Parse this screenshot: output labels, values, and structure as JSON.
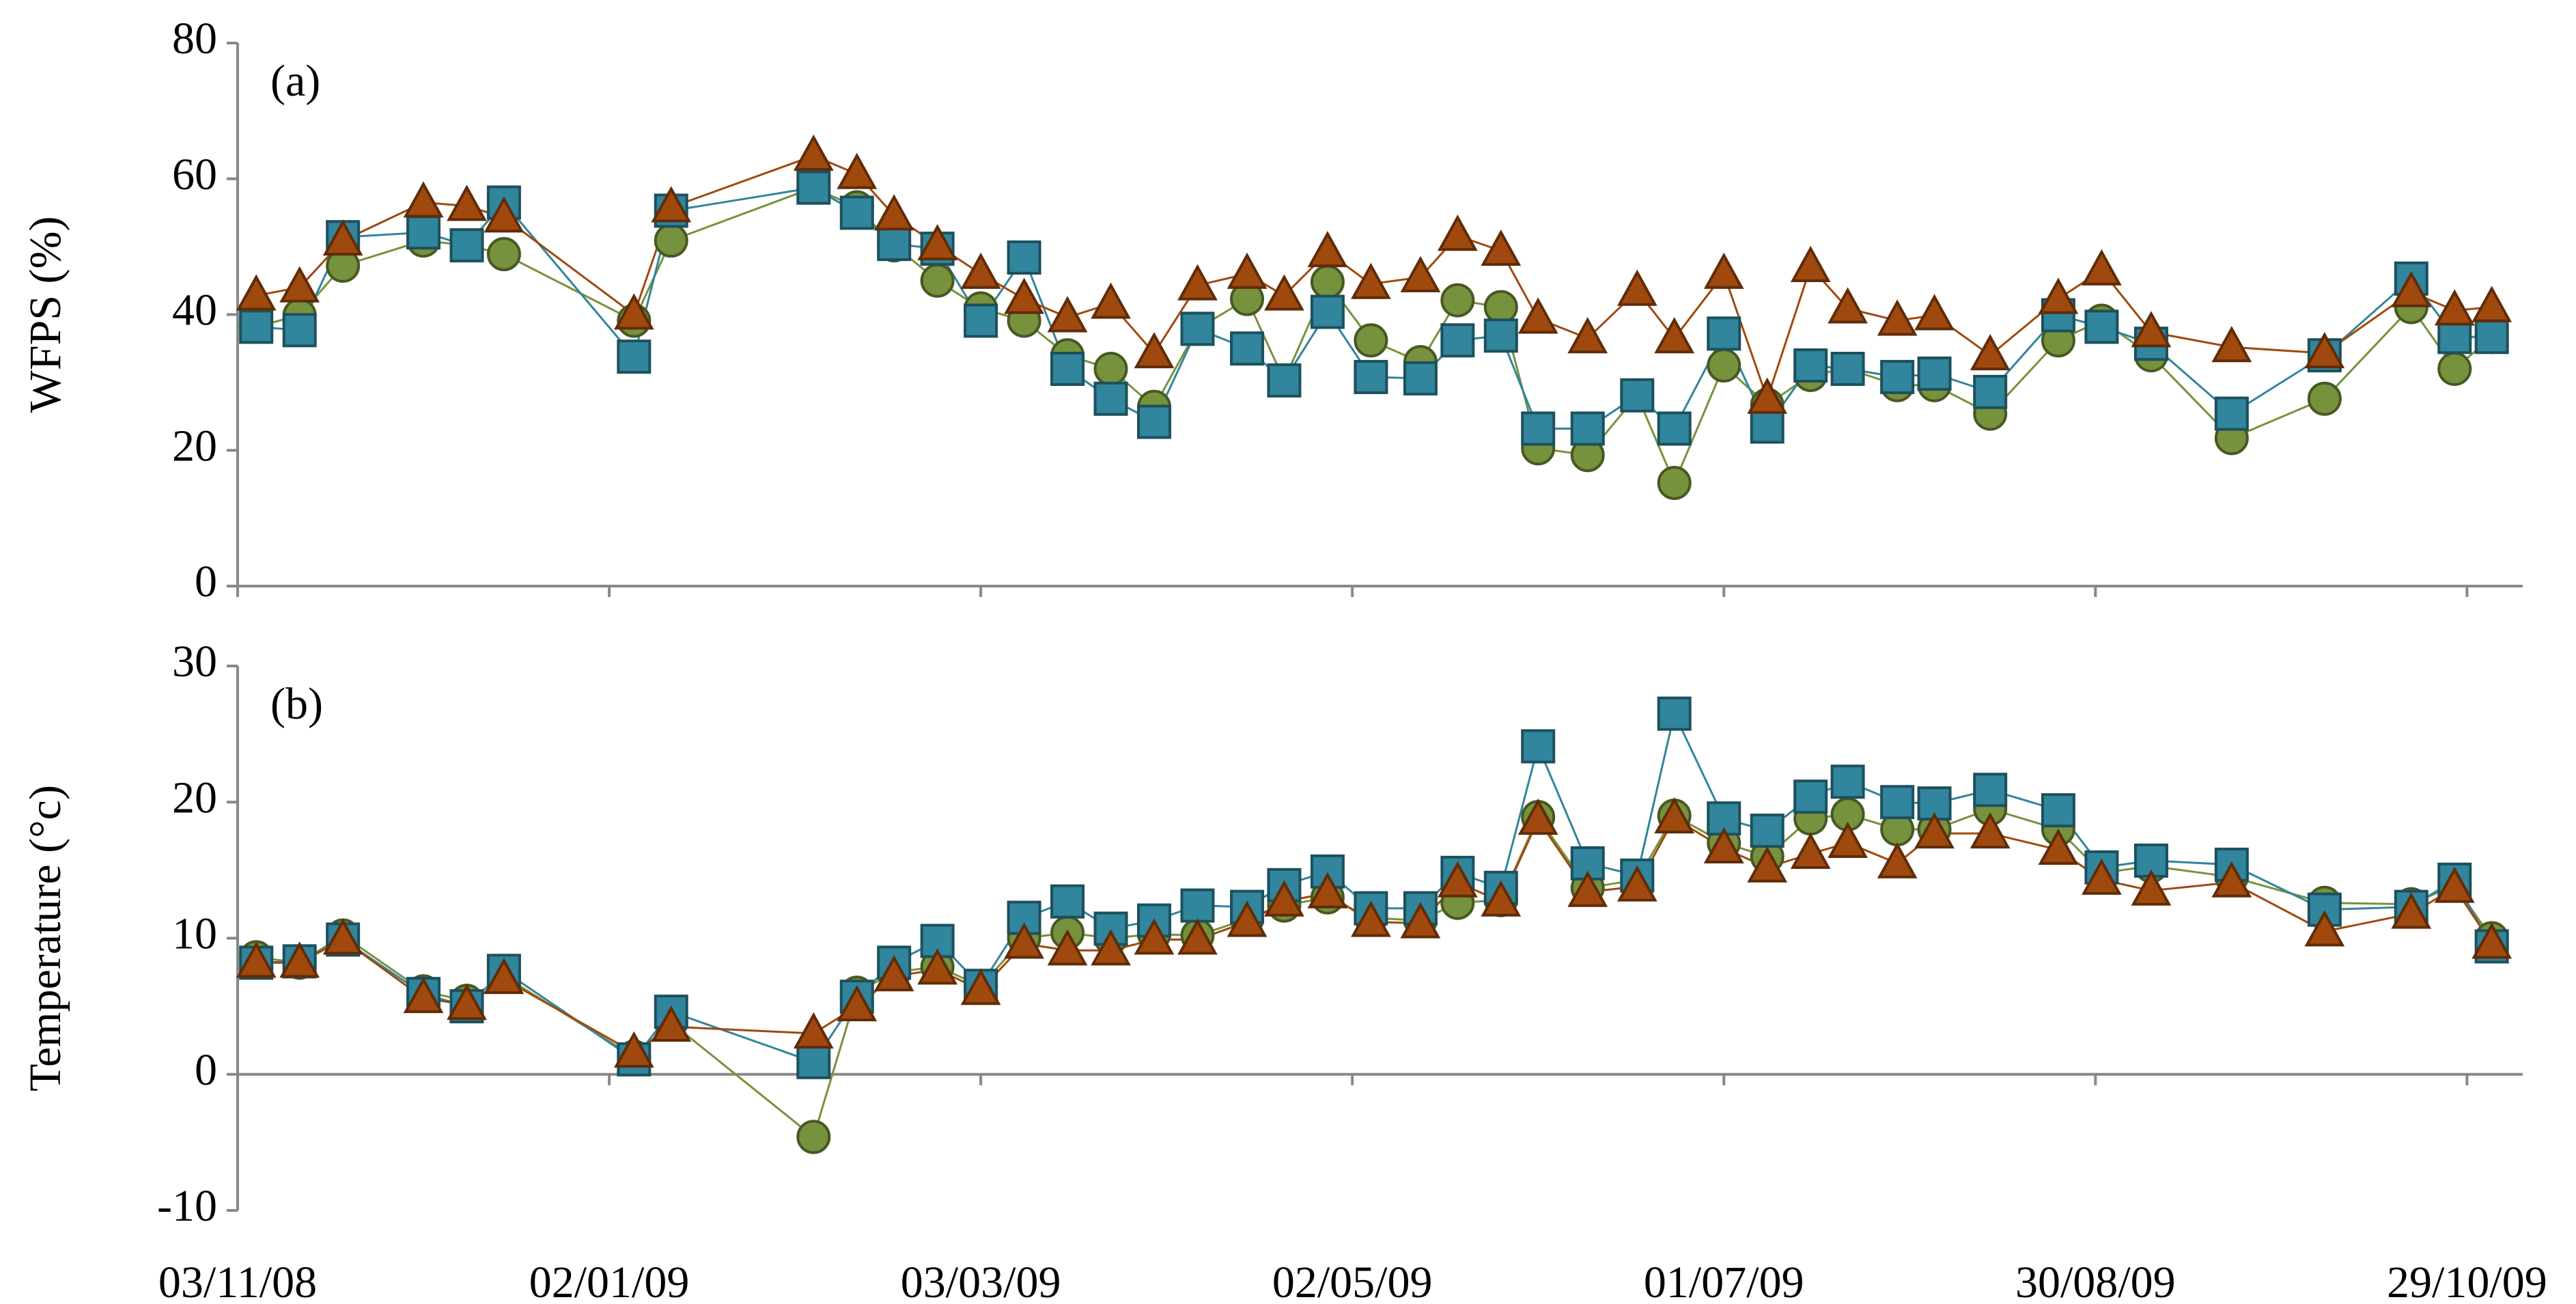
{
  "chart_data": [
    {
      "type": "line",
      "annotation": "(a)",
      "ylabel": "WFPS (%)",
      "x": [
        "06/11/08",
        "13/11/08",
        "20/11/08",
        "03/12/08",
        "10/12/08",
        "16/12/08",
        "06/01/09",
        "12/01/09",
        "04/02/09",
        "11/02/09",
        "17/02/09",
        "24/02/09",
        "03/03/09",
        "10/03/09",
        "17/03/09",
        "24/03/09",
        "31/03/09",
        "07/04/09",
        "15/04/09",
        "21/04/09",
        "28/04/09",
        "05/05/09",
        "13/05/09",
        "19/05/09",
        "26/05/09",
        "01/06/09",
        "09/06/09",
        "17/06/09",
        "23/06/09",
        "01/07/09",
        "08/07/09",
        "15/07/09",
        "21/07/09",
        "29/07/09",
        "04/08/09",
        "13/08/09",
        "24/08/09",
        "31/08/09",
        "08/09/09",
        "21/09/09",
        "06/10/09",
        "20/10/09",
        "27/10/09",
        "02/11/09"
      ],
      "ylim": [
        0,
        80
      ],
      "yticks": [
        0,
        20,
        40,
        60,
        80
      ],
      "series": [
        {
          "marker": "circle",
          "color": "#77923c",
          "values": [
            38.2,
            39.9,
            47.2,
            50.9,
            50.2,
            48.9,
            39.1,
            50.9,
            58.7,
            55.8,
            50.2,
            45,
            40.9,
            39.1,
            34,
            32,
            26.4,
            37.9,
            42.3,
            30.3,
            44.8,
            36.2,
            33,
            42.1,
            41.1,
            20.3,
            19.3,
            28.1,
            15.2,
            32.5,
            26.7,
            31.1,
            32,
            29.6,
            29.6,
            25.4,
            36.2,
            39.1,
            34,
            21.8,
            27.6,
            41.1,
            32,
            36.7
          ]
        },
        {
          "marker": "square",
          "color": "#31859c",
          "values": [
            38.2,
            37.7,
            51.4,
            52.1,
            50.2,
            56.5,
            33.8,
            55.3,
            58.7,
            55,
            50.4,
            49.7,
            39.1,
            48.4,
            32,
            27.6,
            24.2,
            37.9,
            35,
            30.3,
            40.4,
            30.8,
            30.6,
            36.2,
            36.9,
            23.2,
            23.2,
            28.1,
            23.2,
            37.2,
            23.5,
            32.5,
            32,
            30.8,
            31.3,
            28.6,
            39.9,
            38.2,
            35.7,
            25.4,
            34,
            45.3,
            36.7,
            36.7
          ]
        },
        {
          "marker": "triangle",
          "color": "#a0490e",
          "values": [
            42.8,
            44,
            50.9,
            56.5,
            56,
            54.3,
            40,
            55.8,
            63.4,
            60.7,
            54.6,
            50.2,
            46,
            42.3,
            39.6,
            41.6,
            34.3,
            44.3,
            46,
            42.8,
            49.2,
            44.5,
            45.5,
            51.6,
            49.4,
            39.4,
            36.5,
            43.5,
            36.5,
            46,
            27.6,
            47,
            40.9,
            39.1,
            39.9,
            34,
            42.3,
            46.5,
            37.4,
            35.2,
            34.3,
            43.3,
            40.6,
            41.1
          ]
        }
      ]
    },
    {
      "type": "line",
      "annotation": "(b)",
      "ylabel": "Temperature (°c)",
      "x": [
        "06/11/08",
        "13/11/08",
        "20/11/08",
        "03/12/08",
        "10/12/08",
        "16/12/08",
        "06/01/09",
        "12/01/09",
        "04/02/09",
        "11/02/09",
        "17/02/09",
        "24/02/09",
        "03/03/09",
        "10/03/09",
        "17/03/09",
        "24/03/09",
        "31/03/09",
        "07/04/09",
        "15/04/09",
        "21/04/09",
        "28/04/09",
        "05/05/09",
        "13/05/09",
        "19/05/09",
        "26/05/09",
        "01/06/09",
        "09/06/09",
        "17/06/09",
        "23/06/09",
        "01/07/09",
        "08/07/09",
        "15/07/09",
        "21/07/09",
        "29/07/09",
        "04/08/09",
        "13/08/09",
        "24/08/09",
        "31/08/09",
        "08/09/09",
        "21/09/09",
        "06/10/09",
        "20/10/09",
        "27/10/09",
        "02/11/09"
      ],
      "xlim": [
        "03/11/08",
        "07/11/09"
      ],
      "xticks": [
        "03/11/08",
        "02/01/09",
        "03/03/09",
        "02/05/09",
        "01/07/09",
        "30/08/09",
        "29/10/09"
      ],
      "ylim": [
        -10,
        30
      ],
      "yticks": [
        -10,
        0,
        10,
        20,
        30
      ],
      "series": [
        {
          "marker": "circle",
          "color": "#77923c",
          "values": [
            8.6,
            8.2,
            10.2,
            6.1,
            5.4,
            7.2,
            1.3,
            3.8,
            -4.6,
            6,
            7.5,
            7.9,
            6.5,
            10,
            10.4,
            10,
            10.3,
            10.2,
            11.4,
            12.4,
            13,
            11.5,
            11.3,
            12.6,
            12.8,
            18.9,
            13.7,
            14.3,
            19,
            17,
            16,
            18.8,
            19.1,
            18,
            18,
            19.5,
            18,
            14.8,
            15.3,
            14.5,
            12.6,
            12.5,
            13.9,
            10
          ]
        },
        {
          "marker": "square",
          "color": "#31859c",
          "values": [
            8.2,
            8.3,
            9.9,
            5.9,
            5,
            7.6,
            1.1,
            4.6,
            0.9,
            5.7,
            8.2,
            9.8,
            6.5,
            11.5,
            12.7,
            10.7,
            11.3,
            12.4,
            12.3,
            13.9,
            14.9,
            12.2,
            12.2,
            14.8,
            13.7,
            24.1,
            15.5,
            14.6,
            26.5,
            18.8,
            17.9,
            20.4,
            21.5,
            20,
            19.9,
            20.9,
            19.4,
            15.2,
            15.7,
            15.4,
            12.1,
            12.3,
            14.3,
            9.4
          ]
        },
        {
          "marker": "triangle",
          "color": "#a0490e",
          "values": [
            8.2,
            8.2,
            9.9,
            5.6,
            5.1,
            7,
            1.6,
            3.5,
            3,
            5,
            7.2,
            7.7,
            6.2,
            9.6,
            9.1,
            9.1,
            9.9,
            9.9,
            11.2,
            12.7,
            13.3,
            11.2,
            11.1,
            14.1,
            12.7,
            18.7,
            13.4,
            13.8,
            18.8,
            16.6,
            15.2,
            16.2,
            17,
            15.5,
            17.7,
            17.7,
            16.5,
            14.3,
            13.5,
            14.1,
            10.5,
            11.8,
            13.7,
            9.6
          ]
        }
      ]
    }
  ]
}
